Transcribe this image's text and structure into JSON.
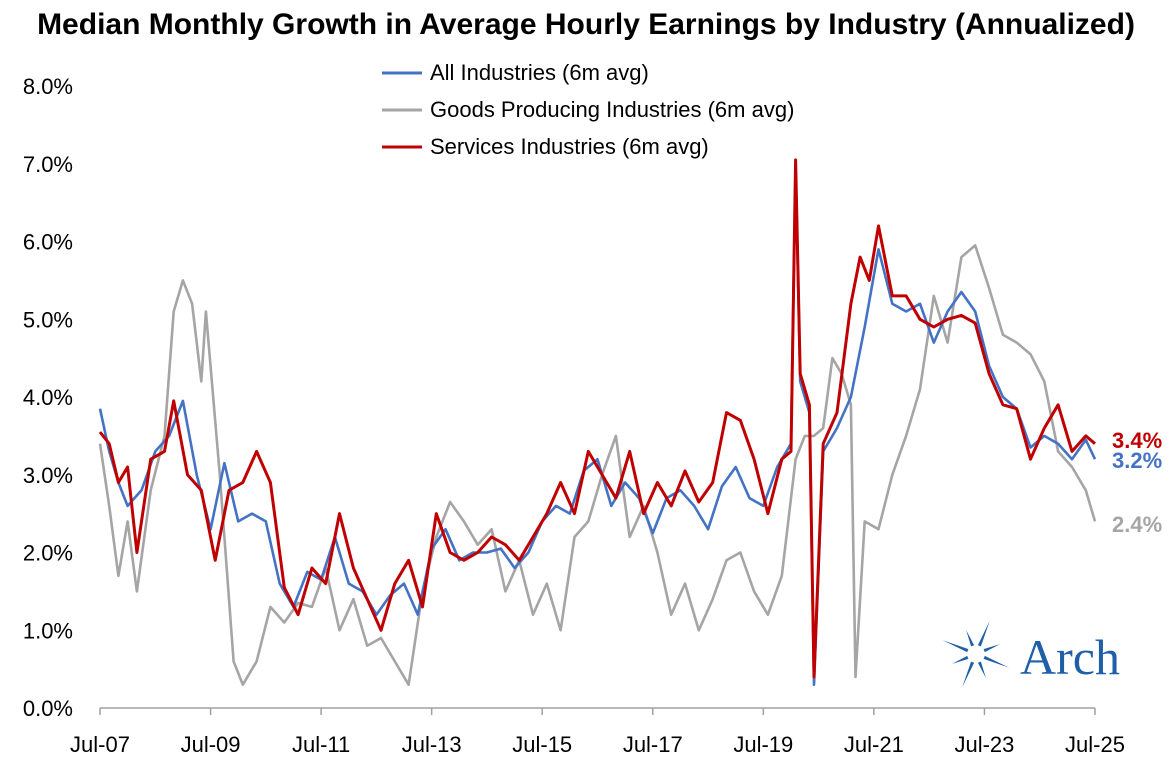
{
  "chart_data": {
    "type": "line",
    "title": "Median Monthly Growth in Average Hourly Earnings by Industry (Annualized)",
    "xlabel": "",
    "ylabel": "",
    "x_tick_labels": [
      "Jul-07",
      "Jul-09",
      "Jul-11",
      "Jul-13",
      "Jul-15",
      "Jul-17",
      "Jul-19",
      "Jul-21",
      "Jul-23",
      "Jul-25"
    ],
    "y_tick_labels": [
      "0.0%",
      "1.0%",
      "2.0%",
      "3.0%",
      "4.0%",
      "5.0%",
      "6.0%",
      "7.0%",
      "8.0%"
    ],
    "ylim": [
      0,
      8
    ],
    "xlim": [
      "2007-07",
      "2025-07"
    ],
    "grid": false,
    "legend_position": "top-center",
    "series": [
      {
        "name": "All Industries (6m avg)",
        "color": "#4472C4",
        "end_label": "3.2%",
        "points": [
          [
            "2007-07",
            3.85
          ],
          [
            "2007-09",
            3.3
          ],
          [
            "2007-11",
            2.9
          ],
          [
            "2008-01",
            2.6
          ],
          [
            "2008-04",
            2.8
          ],
          [
            "2008-07",
            3.3
          ],
          [
            "2008-10",
            3.5
          ],
          [
            "2009-01",
            3.95
          ],
          [
            "2009-04",
            3.0
          ],
          [
            "2009-07",
            2.3
          ],
          [
            "2009-10",
            3.15
          ],
          [
            "2010-01",
            2.4
          ],
          [
            "2010-04",
            2.5
          ],
          [
            "2010-07",
            2.4
          ],
          [
            "2010-10",
            1.6
          ],
          [
            "2011-01",
            1.3
          ],
          [
            "2011-04",
            1.75
          ],
          [
            "2011-07",
            1.65
          ],
          [
            "2011-10",
            2.2
          ],
          [
            "2012-01",
            1.6
          ],
          [
            "2012-04",
            1.5
          ],
          [
            "2012-07",
            1.2
          ],
          [
            "2012-10",
            1.45
          ],
          [
            "2013-01",
            1.6
          ],
          [
            "2013-04",
            1.2
          ],
          [
            "2013-07",
            2.05
          ],
          [
            "2013-10",
            2.3
          ],
          [
            "2014-01",
            1.9
          ],
          [
            "2014-04",
            2.0
          ],
          [
            "2014-07",
            2.0
          ],
          [
            "2014-10",
            2.05
          ],
          [
            "2015-01",
            1.8
          ],
          [
            "2015-04",
            2.0
          ],
          [
            "2015-07",
            2.4
          ],
          [
            "2015-10",
            2.6
          ],
          [
            "2016-01",
            2.5
          ],
          [
            "2016-04",
            3.05
          ],
          [
            "2016-07",
            3.2
          ],
          [
            "2016-10",
            2.6
          ],
          [
            "2017-01",
            2.9
          ],
          [
            "2017-04",
            2.7
          ],
          [
            "2017-07",
            2.25
          ],
          [
            "2017-10",
            2.7
          ],
          [
            "2018-01",
            2.8
          ],
          [
            "2018-04",
            2.6
          ],
          [
            "2018-07",
            2.3
          ],
          [
            "2018-10",
            2.85
          ],
          [
            "2019-01",
            3.1
          ],
          [
            "2019-04",
            2.7
          ],
          [
            "2019-07",
            2.6
          ],
          [
            "2019-10",
            3.1
          ],
          [
            "2020-01",
            3.4
          ],
          [
            "2020-02",
            7.0
          ],
          [
            "2020-03",
            4.2
          ],
          [
            "2020-05",
            3.8
          ],
          [
            "2020-06",
            0.3
          ],
          [
            "2020-08",
            3.3
          ],
          [
            "2020-11",
            3.6
          ],
          [
            "2021-02",
            4.0
          ],
          [
            "2021-05",
            4.9
          ],
          [
            "2021-08",
            5.9
          ],
          [
            "2021-11",
            5.2
          ],
          [
            "2022-02",
            5.1
          ],
          [
            "2022-05",
            5.2
          ],
          [
            "2022-08",
            4.7
          ],
          [
            "2022-11",
            5.1
          ],
          [
            "2023-02",
            5.35
          ],
          [
            "2023-05",
            5.1
          ],
          [
            "2023-08",
            4.4
          ],
          [
            "2023-11",
            4.0
          ],
          [
            "2024-02",
            3.85
          ],
          [
            "2024-05",
            3.35
          ],
          [
            "2024-08",
            3.5
          ],
          [
            "2024-11",
            3.4
          ],
          [
            "2025-02",
            3.2
          ],
          [
            "2025-05",
            3.45
          ],
          [
            "2025-07",
            3.2
          ]
        ]
      },
      {
        "name": "Goods Producing Industries (6m avg)",
        "color": "#A5A5A5",
        "end_label": "2.4%",
        "points": [
          [
            "2007-07",
            3.4
          ],
          [
            "2007-09",
            2.6
          ],
          [
            "2007-11",
            1.7
          ],
          [
            "2008-01",
            2.4
          ],
          [
            "2008-03",
            1.5
          ],
          [
            "2008-06",
            2.8
          ],
          [
            "2008-09",
            3.5
          ],
          [
            "2008-11",
            5.1
          ],
          [
            "2009-01",
            5.5
          ],
          [
            "2009-03",
            5.2
          ],
          [
            "2009-05",
            4.2
          ],
          [
            "2009-06",
            5.1
          ],
          [
            "2009-09",
            3.0
          ],
          [
            "2009-12",
            0.6
          ],
          [
            "2010-02",
            0.3
          ],
          [
            "2010-05",
            0.6
          ],
          [
            "2010-08",
            1.3
          ],
          [
            "2010-11",
            1.1
          ],
          [
            "2011-02",
            1.35
          ],
          [
            "2011-05",
            1.3
          ],
          [
            "2011-08",
            1.8
          ],
          [
            "2011-11",
            1.0
          ],
          [
            "2012-02",
            1.4
          ],
          [
            "2012-05",
            0.8
          ],
          [
            "2012-08",
            0.9
          ],
          [
            "2012-11",
            0.6
          ],
          [
            "2013-02",
            0.3
          ],
          [
            "2013-05",
            1.5
          ],
          [
            "2013-08",
            2.2
          ],
          [
            "2013-11",
            2.65
          ],
          [
            "2014-02",
            2.4
          ],
          [
            "2014-05",
            2.1
          ],
          [
            "2014-08",
            2.3
          ],
          [
            "2014-11",
            1.5
          ],
          [
            "2015-02",
            1.9
          ],
          [
            "2015-05",
            1.2
          ],
          [
            "2015-08",
            1.6
          ],
          [
            "2015-11",
            1.0
          ],
          [
            "2016-02",
            2.2
          ],
          [
            "2016-05",
            2.4
          ],
          [
            "2016-08",
            3.0
          ],
          [
            "2016-11",
            3.5
          ],
          [
            "2017-02",
            2.2
          ],
          [
            "2017-05",
            2.6
          ],
          [
            "2017-08",
            2.0
          ],
          [
            "2017-11",
            1.2
          ],
          [
            "2018-02",
            1.6
          ],
          [
            "2018-05",
            1.0
          ],
          [
            "2018-08",
            1.4
          ],
          [
            "2018-11",
            1.9
          ],
          [
            "2019-02",
            2.0
          ],
          [
            "2019-05",
            1.5
          ],
          [
            "2019-08",
            1.2
          ],
          [
            "2019-11",
            1.7
          ],
          [
            "2020-02",
            3.2
          ],
          [
            "2020-04",
            3.5
          ],
          [
            "2020-06",
            3.5
          ],
          [
            "2020-08",
            3.6
          ],
          [
            "2020-10",
            4.5
          ],
          [
            "2020-12",
            4.3
          ],
          [
            "2021-02",
            3.9
          ],
          [
            "2021-03",
            0.4
          ],
          [
            "2021-05",
            2.4
          ],
          [
            "2021-08",
            2.3
          ],
          [
            "2021-11",
            3.0
          ],
          [
            "2022-02",
            3.5
          ],
          [
            "2022-05",
            4.1
          ],
          [
            "2022-08",
            5.3
          ],
          [
            "2022-11",
            4.7
          ],
          [
            "2023-02",
            5.8
          ],
          [
            "2023-05",
            5.95
          ],
          [
            "2023-08",
            5.4
          ],
          [
            "2023-11",
            4.8
          ],
          [
            "2024-02",
            4.7
          ],
          [
            "2024-05",
            4.55
          ],
          [
            "2024-08",
            4.2
          ],
          [
            "2024-11",
            3.3
          ],
          [
            "2025-02",
            3.1
          ],
          [
            "2025-05",
            2.8
          ],
          [
            "2025-07",
            2.4
          ]
        ]
      },
      {
        "name": "Services Industries (6m avg)",
        "color": "#C00000",
        "end_label": "3.4%",
        "points": [
          [
            "2007-07",
            3.55
          ],
          [
            "2007-09",
            3.4
          ],
          [
            "2007-11",
            2.9
          ],
          [
            "2008-01",
            3.1
          ],
          [
            "2008-03",
            2.0
          ],
          [
            "2008-06",
            3.2
          ],
          [
            "2008-09",
            3.3
          ],
          [
            "2008-11",
            3.95
          ],
          [
            "2009-02",
            3.0
          ],
          [
            "2009-05",
            2.8
          ],
          [
            "2009-08",
            1.9
          ],
          [
            "2009-11",
            2.8
          ],
          [
            "2010-02",
            2.9
          ],
          [
            "2010-05",
            3.3
          ],
          [
            "2010-08",
            2.9
          ],
          [
            "2010-11",
            1.55
          ],
          [
            "2011-02",
            1.2
          ],
          [
            "2011-05",
            1.8
          ],
          [
            "2011-08",
            1.6
          ],
          [
            "2011-11",
            2.5
          ],
          [
            "2012-02",
            1.8
          ],
          [
            "2012-05",
            1.4
          ],
          [
            "2012-08",
            1.0
          ],
          [
            "2012-11",
            1.6
          ],
          [
            "2013-02",
            1.9
          ],
          [
            "2013-05",
            1.3
          ],
          [
            "2013-08",
            2.5
          ],
          [
            "2013-11",
            2.0
          ],
          [
            "2014-02",
            1.9
          ],
          [
            "2014-05",
            2.0
          ],
          [
            "2014-08",
            2.2
          ],
          [
            "2014-11",
            2.1
          ],
          [
            "2015-02",
            1.9
          ],
          [
            "2015-05",
            2.2
          ],
          [
            "2015-08",
            2.5
          ],
          [
            "2015-11",
            2.9
          ],
          [
            "2016-02",
            2.5
          ],
          [
            "2016-05",
            3.3
          ],
          [
            "2016-08",
            3.0
          ],
          [
            "2016-11",
            2.7
          ],
          [
            "2017-02",
            3.3
          ],
          [
            "2017-05",
            2.5
          ],
          [
            "2017-08",
            2.9
          ],
          [
            "2017-11",
            2.6
          ],
          [
            "2018-02",
            3.05
          ],
          [
            "2018-05",
            2.65
          ],
          [
            "2018-08",
            2.9
          ],
          [
            "2018-11",
            3.8
          ],
          [
            "2019-02",
            3.7
          ],
          [
            "2019-05",
            3.2
          ],
          [
            "2019-08",
            2.5
          ],
          [
            "2019-11",
            3.2
          ],
          [
            "2020-01",
            3.3
          ],
          [
            "2020-02",
            7.05
          ],
          [
            "2020-03",
            4.3
          ],
          [
            "2020-05",
            3.9
          ],
          [
            "2020-06",
            0.4
          ],
          [
            "2020-08",
            3.4
          ],
          [
            "2020-11",
            3.8
          ],
          [
            "2021-02",
            5.2
          ],
          [
            "2021-04",
            5.8
          ],
          [
            "2021-06",
            5.5
          ],
          [
            "2021-08",
            6.2
          ],
          [
            "2021-11",
            5.3
          ],
          [
            "2022-02",
            5.3
          ],
          [
            "2022-05",
            5.0
          ],
          [
            "2022-08",
            4.9
          ],
          [
            "2022-11",
            5.0
          ],
          [
            "2023-02",
            5.05
          ],
          [
            "2023-05",
            4.95
          ],
          [
            "2023-08",
            4.3
          ],
          [
            "2023-11",
            3.9
          ],
          [
            "2024-02",
            3.85
          ],
          [
            "2024-05",
            3.2
          ],
          [
            "2024-08",
            3.6
          ],
          [
            "2024-11",
            3.9
          ],
          [
            "2025-02",
            3.3
          ],
          [
            "2025-05",
            3.5
          ],
          [
            "2025-07",
            3.4
          ]
        ]
      }
    ]
  },
  "logo": {
    "text": "Arch",
    "icon": "compass-star-icon",
    "color": "#1f5fa8"
  }
}
